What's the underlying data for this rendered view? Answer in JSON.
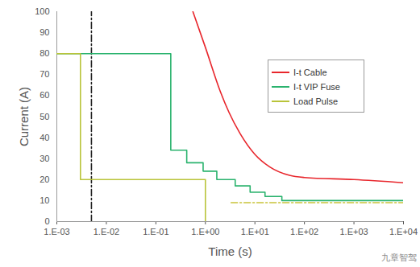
{
  "chart_data": {
    "type": "line",
    "x_label": "Time (s)",
    "y_label": "Current (A)",
    "log": "x",
    "grid": false,
    "legend": "top-right",
    "xlim": [
      0.001,
      10000
    ],
    "xticks": [
      {
        "value": 0.001,
        "label": "1.E-03"
      },
      {
        "value": 0.01,
        "label": "1.E-02"
      },
      {
        "value": 0.1,
        "label": "1.E-01"
      },
      {
        "value": 1,
        "label": "1.E+00"
      },
      {
        "value": 10,
        "label": "1.E+01"
      },
      {
        "value": 100,
        "label": "1.E+02"
      },
      {
        "value": 1000,
        "label": "1.E+03"
      },
      {
        "value": 10000,
        "label": "1.E+04"
      }
    ],
    "ylim": [
      0,
      100
    ],
    "yticks": [
      0,
      10,
      20,
      30,
      40,
      50,
      60,
      70,
      80,
      90,
      100
    ],
    "series": [
      {
        "name": "I-t Cable",
        "color": "#e8262c",
        "type": "line",
        "line_style": "solid",
        "x": [
          0.56,
          1,
          2,
          3,
          5,
          10,
          20,
          50,
          100,
          1000,
          10000
        ],
        "values": [
          100,
          83,
          62,
          52,
          42,
          32,
          26,
          22,
          21,
          20,
          18.5
        ]
      },
      {
        "name": "I-t VIP Fuse",
        "color": "#2bb36e",
        "type": "step",
        "line_style": "solid",
        "x": [
          0.001,
          0.2,
          0.42,
          0.9,
          1.7,
          4,
          8,
          16,
          35,
          10000
        ],
        "values": [
          80,
          34,
          28,
          24,
          20,
          17,
          14,
          12,
          10,
          10
        ]
      },
      {
        "name": "Load Pulse",
        "color": "#b9c43a",
        "type": "step",
        "line_style": "solid",
        "x": [
          0.001,
          0.003,
          1.0
        ],
        "values": [
          80,
          20,
          0
        ]
      }
    ],
    "reference_lines": [
      {
        "x": [
          0.005,
          0.005
        ],
        "y": [
          0,
          100
        ],
        "color": "#222222",
        "line_style": "dashdot"
      },
      {
        "x": [
          3.3,
          10000
        ],
        "y": [
          9,
          9
        ],
        "color": "#c9c43a",
        "line_style": "dashdot"
      }
    ],
    "annotations": [
      {
        "text": "九章智驾"
      }
    ]
  }
}
